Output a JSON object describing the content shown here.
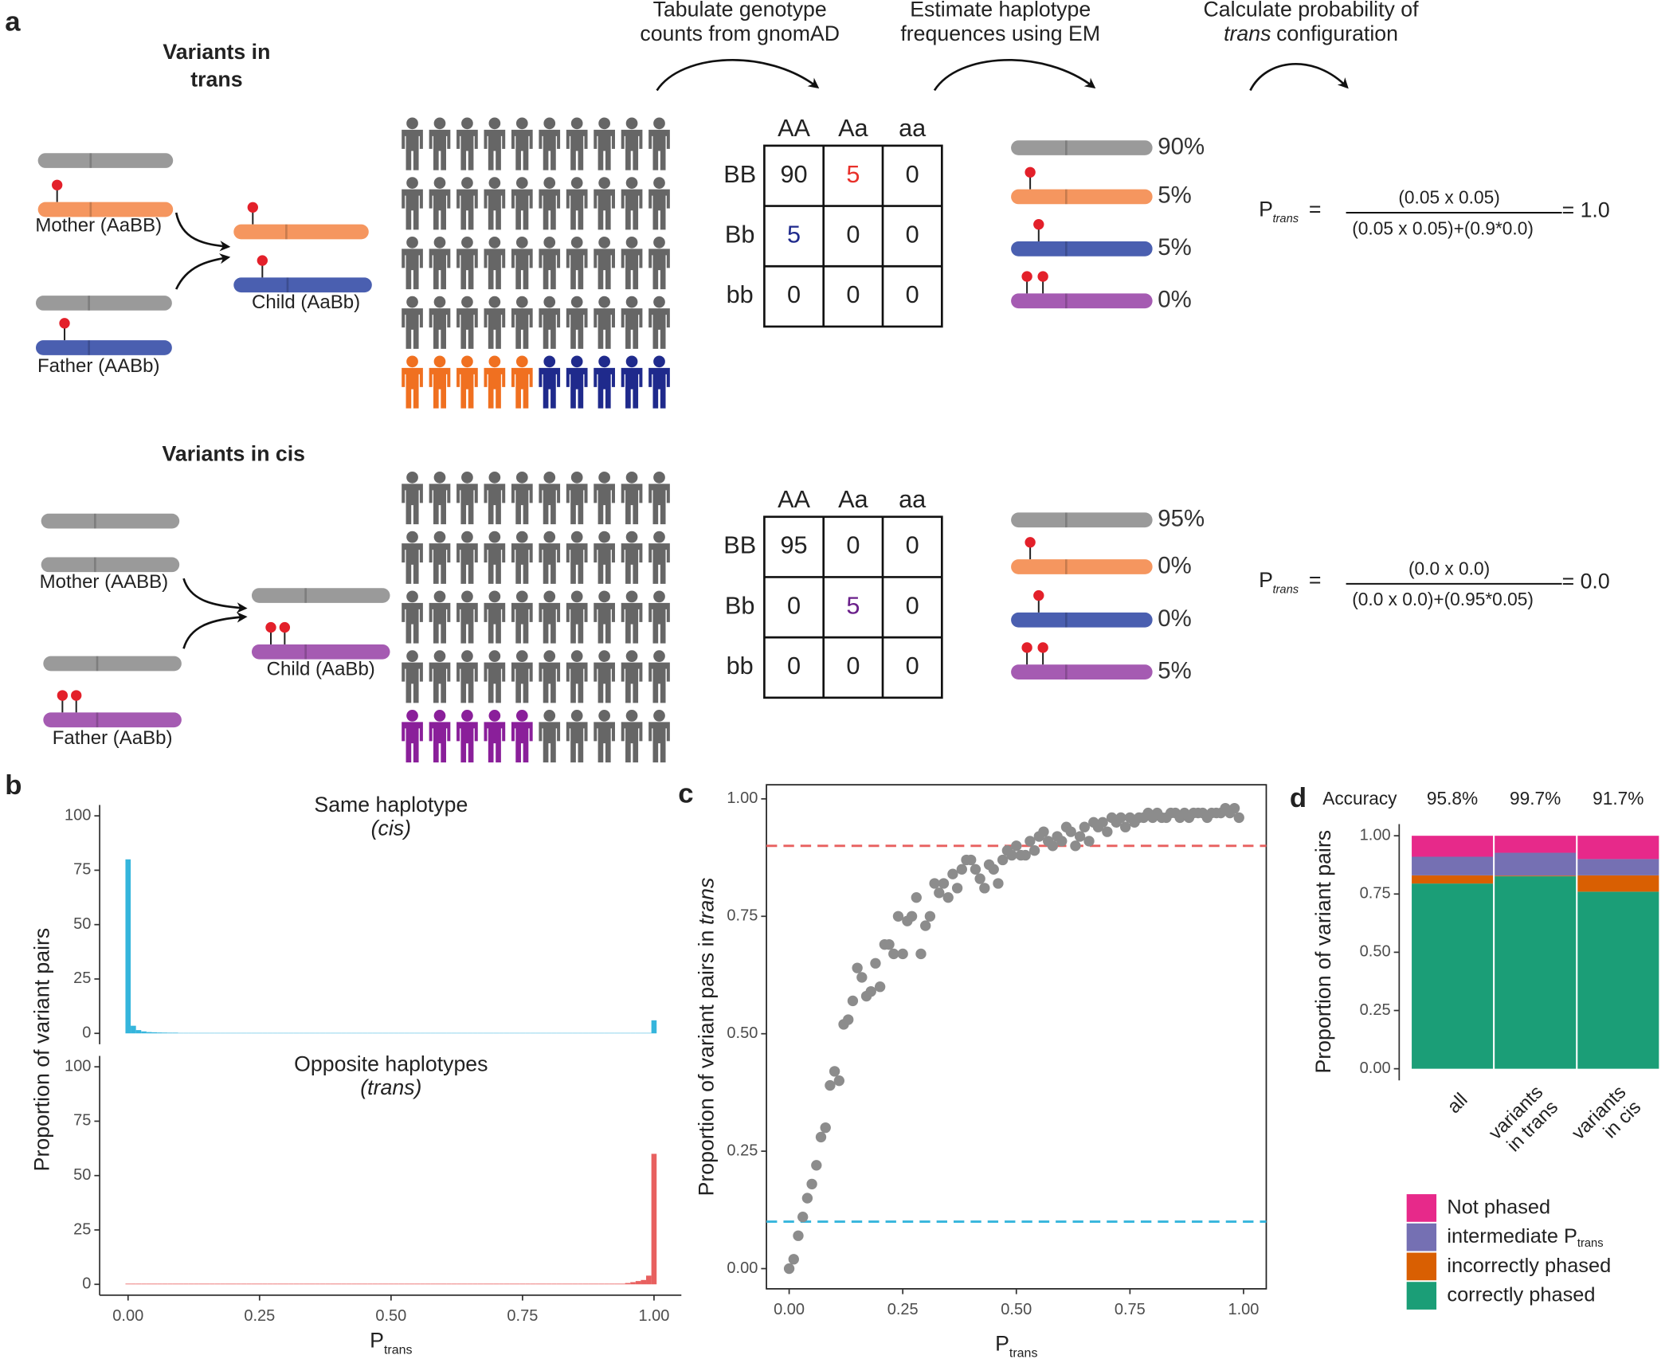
{
  "panel_labels": [
    "a",
    "b",
    "c",
    "d"
  ],
  "panel_a": {
    "steps": [
      {
        "lines": [
          "Tabulate genotype",
          "counts from gnomAD"
        ]
      },
      {
        "lines": [
          "Estimate haplotype",
          "frequences using EM"
        ]
      },
      {
        "lines": [
          "Calculate probability of"
        ],
        "italic": "trans",
        "rest": "configuration"
      }
    ],
    "scenarios": [
      {
        "title": [
          "Variants in",
          "trans"
        ],
        "mother": "Mother (AaBB)",
        "father": "Father (AABb)",
        "child": "Child (AaBb)",
        "table": {
          "columns": [
            "AA",
            "Aa",
            "aa"
          ],
          "rows": [
            "BB",
            "Bb",
            "bb"
          ],
          "cells": [
            [
              90,
              5,
              0
            ],
            [
              5,
              0,
              0
            ],
            [
              0,
              0,
              0
            ]
          ],
          "cell_colors": [
            [
              null,
              "#e8302a",
              null
            ],
            [
              "#1f2a8c",
              null,
              null
            ],
            [
              null,
              null,
              null
            ]
          ]
        },
        "haplotypes": [
          "90%",
          "5%",
          "5%",
          "0%"
        ],
        "formula": {
          "p": "P",
          "sub": "trans",
          "eq": "=",
          "numerator": "(0.05 x 0.05)",
          "denominator": "(0.05 x 0.05)+(0.9*0.0)",
          "result": "= 1.0"
        }
      },
      {
        "title": [
          "Variants in cis"
        ],
        "mother": "Mother (AABB)",
        "father": "Father (AaBb)",
        "child": "Child (AaBb)",
        "table": {
          "columns": [
            "AA",
            "Aa",
            "aa"
          ],
          "rows": [
            "BB",
            "Bb",
            "bb"
          ],
          "cells": [
            [
              95,
              0,
              0
            ],
            [
              0,
              5,
              0
            ],
            [
              0,
              0,
              0
            ]
          ],
          "cell_colors": [
            [
              null,
              null,
              null
            ],
            [
              null,
              "#6a1f8a",
              null
            ],
            [
              null,
              null,
              null
            ]
          ]
        },
        "haplotypes": [
          "95%",
          "0%",
          "0%",
          "5%"
        ],
        "formula": {
          "p": "P",
          "sub": "trans",
          "eq": "=",
          "numerator": "(0.0 x 0.0)",
          "denominator": "(0.0 x 0.0)+(0.95*0.05)",
          "result": "= 0.0"
        }
      }
    ]
  },
  "chart_data": [
    {
      "type": "histogram",
      "title": "Same haplotype",
      "subtitle": "(cis)",
      "ylabel": "Proportion of variant pairs",
      "color": "#35b5dc",
      "xlim": [
        -0.05,
        1.05
      ],
      "ylim": [
        -5,
        105
      ],
      "yticks": [
        0,
        25,
        50,
        75,
        100
      ],
      "bins": [
        -0.005,
        0.005,
        0.015,
        0.025,
        0.035,
        0.045,
        0.055,
        0.065,
        0.075,
        0.085,
        0.095,
        0.105,
        0.115,
        0.125,
        0.135,
        0.145,
        0.155,
        0.165,
        0.175,
        0.185,
        0.195,
        0.205,
        0.215,
        0.225,
        0.235,
        0.245,
        0.255,
        0.265,
        0.275,
        0.285,
        0.295,
        0.305,
        0.315,
        0.325,
        0.335,
        0.345,
        0.355,
        0.365,
        0.375,
        0.385,
        0.395,
        0.405,
        0.415,
        0.425,
        0.435,
        0.445,
        0.455,
        0.465,
        0.475,
        0.485,
        0.495,
        0.505,
        0.515,
        0.525,
        0.535,
        0.545,
        0.555,
        0.565,
        0.575,
        0.585,
        0.595,
        0.605,
        0.615,
        0.625,
        0.635,
        0.645,
        0.655,
        0.665,
        0.675,
        0.685,
        0.695,
        0.705,
        0.715,
        0.725,
        0.735,
        0.745,
        0.755,
        0.765,
        0.775,
        0.785,
        0.795,
        0.805,
        0.815,
        0.825,
        0.835,
        0.845,
        0.855,
        0.865,
        0.875,
        0.885,
        0.895,
        0.905,
        0.915,
        0.925,
        0.935,
        0.945,
        0.955,
        0.965,
        0.975,
        0.985,
        0.995,
        1.005
      ],
      "values": [
        80,
        3.5,
        1.5,
        0.9,
        0.6,
        0.5,
        0.4,
        0.35,
        0.3,
        0.3,
        0.2,
        0.2,
        0.2,
        0.2,
        0.2,
        0.2,
        0.2,
        0.2,
        0.2,
        0.2,
        0.2,
        0.2,
        0.2,
        0.2,
        0.2,
        0.2,
        0.2,
        0.2,
        0.2,
        0.2,
        0.2,
        0.2,
        0.2,
        0.2,
        0.2,
        0.2,
        0.2,
        0.2,
        0.2,
        0.2,
        0.2,
        0.2,
        0.2,
        0.2,
        0.2,
        0.2,
        0.2,
        0.2,
        0.2,
        0.2,
        0.2,
        0.2,
        0.2,
        0.2,
        0.2,
        0.2,
        0.2,
        0.2,
        0.2,
        0.2,
        0.2,
        0.2,
        0.2,
        0.2,
        0.2,
        0.2,
        0.2,
        0.2,
        0.2,
        0.2,
        0.2,
        0.2,
        0.2,
        0.2,
        0.2,
        0.2,
        0.2,
        0.2,
        0.2,
        0.2,
        0.2,
        0.2,
        0.2,
        0.2,
        0.2,
        0.2,
        0.2,
        0.2,
        0.2,
        0.2,
        0.2,
        0.2,
        0.2,
        0.2,
        0.2,
        0.2,
        0.2,
        0.2,
        0.2,
        0.2,
        6
      ]
    },
    {
      "type": "histogram",
      "title": "Opposite haplotypes",
      "subtitle": "(trans)",
      "xlabel": "P",
      "xlabel_sub": "trans",
      "color": "#e8605f",
      "xlim": [
        -0.05,
        1.05
      ],
      "ylim": [
        -5,
        105
      ],
      "yticks": [
        0,
        25,
        50,
        75,
        100
      ],
      "xticks": [
        {
          "value": 0,
          "label": "0.00"
        },
        0.25,
        {
          "value": 0.5,
          "label": "0.50"
        },
        0.75,
        {
          "value": 1,
          "label": "1.00"
        }
      ],
      "bins": [
        -0.005,
        0.005,
        0.015,
        0.025,
        0.035,
        0.045,
        0.055,
        0.065,
        0.075,
        0.085,
        0.095,
        0.105,
        0.115,
        0.125,
        0.135,
        0.145,
        0.155,
        0.165,
        0.175,
        0.185,
        0.195,
        0.205,
        0.215,
        0.225,
        0.235,
        0.245,
        0.255,
        0.265,
        0.275,
        0.285,
        0.295,
        0.305,
        0.315,
        0.325,
        0.335,
        0.345,
        0.355,
        0.365,
        0.375,
        0.385,
        0.395,
        0.405,
        0.415,
        0.425,
        0.435,
        0.445,
        0.455,
        0.465,
        0.475,
        0.485,
        0.495,
        0.505,
        0.515,
        0.525,
        0.535,
        0.545,
        0.555,
        0.565,
        0.575,
        0.585,
        0.595,
        0.605,
        0.615,
        0.625,
        0.635,
        0.645,
        0.655,
        0.665,
        0.675,
        0.685,
        0.695,
        0.705,
        0.715,
        0.725,
        0.735,
        0.745,
        0.755,
        0.765,
        0.775,
        0.785,
        0.795,
        0.805,
        0.815,
        0.825,
        0.835,
        0.845,
        0.855,
        0.865,
        0.875,
        0.885,
        0.895,
        0.905,
        0.915,
        0.925,
        0.935,
        0.945,
        0.955,
        0.965,
        0.975,
        0.985,
        0.995,
        1.005
      ],
      "values": [
        0.3,
        0.3,
        0.3,
        0.3,
        0.3,
        0.3,
        0.3,
        0.3,
        0.3,
        0.3,
        0.3,
        0.3,
        0.3,
        0.3,
        0.3,
        0.3,
        0.3,
        0.3,
        0.3,
        0.3,
        0.3,
        0.3,
        0.3,
        0.3,
        0.3,
        0.3,
        0.3,
        0.3,
        0.3,
        0.3,
        0.3,
        0.3,
        0.3,
        0.3,
        0.3,
        0.3,
        0.3,
        0.3,
        0.3,
        0.3,
        0.3,
        0.3,
        0.3,
        0.3,
        0.3,
        0.3,
        0.3,
        0.3,
        0.3,
        0.3,
        0.3,
        0.3,
        0.3,
        0.3,
        0.3,
        0.3,
        0.3,
        0.3,
        0.3,
        0.3,
        0.3,
        0.3,
        0.3,
        0.3,
        0.3,
        0.3,
        0.3,
        0.3,
        0.3,
        0.3,
        0.3,
        0.3,
        0.3,
        0.3,
        0.3,
        0.3,
        0.3,
        0.3,
        0.3,
        0.3,
        0.3,
        0.3,
        0.3,
        0.3,
        0.3,
        0.3,
        0.3,
        0.3,
        0.3,
        0.3,
        0.3,
        0.3,
        0.3,
        0.3,
        0.3,
        0.6,
        1,
        1.5,
        2,
        4,
        60
      ]
    },
    {
      "type": "scatter",
      "xlabel": "P",
      "xlabel_sub": "trans",
      "ylabel": "Proportion of variant pairs in",
      "ylabel_italic": "trans",
      "color": "#8c8c8c",
      "xlim": [
        -0.05,
        1.05
      ],
      "ylim": [
        -0.043,
        1.03
      ],
      "xticks": [
        {
          "value": 0,
          "label": "0.00"
        },
        0.25,
        {
          "value": 0.5,
          "label": "0.50"
        },
        0.75,
        {
          "value": 1,
          "label": "1.00"
        }
      ],
      "yticks": [
        {
          "value": 0,
          "label": "0.00"
        },
        0.25,
        {
          "value": 0.5,
          "label": "0.50"
        },
        0.75,
        {
          "value": 1,
          "label": "1.00"
        }
      ],
      "hlines": [
        {
          "value": 0.9,
          "color": "#e8605f"
        },
        {
          "value": 0.1,
          "color": "#35b5dc"
        }
      ],
      "x": [
        0,
        0.01,
        0.02,
        0.03,
        0.04,
        0.05,
        0.06,
        0.07,
        0.08,
        0.09,
        0.1,
        0.11,
        0.12,
        0.13,
        0.14,
        0.15,
        0.16,
        0.17,
        0.18,
        0.19,
        0.2,
        0.21,
        0.22,
        0.23,
        0.24,
        0.25,
        0.26,
        0.27,
        0.28,
        0.29,
        0.3,
        0.31,
        0.32,
        0.33,
        0.34,
        0.35,
        0.36,
        0.37,
        0.38,
        0.39,
        0.4,
        0.41,
        0.42,
        0.43,
        0.44,
        0.45,
        0.46,
        0.47,
        0.48,
        0.49,
        0.5,
        0.51,
        0.52,
        0.53,
        0.54,
        0.55,
        0.56,
        0.57,
        0.58,
        0.59,
        0.6,
        0.61,
        0.62,
        0.63,
        0.64,
        0.65,
        0.66,
        0.67,
        0.68,
        0.69,
        0.7,
        0.71,
        0.72,
        0.73,
        0.74,
        0.75,
        0.76,
        0.77,
        0.78,
        0.79,
        0.8,
        0.81,
        0.82,
        0.83,
        0.84,
        0.85,
        0.86,
        0.87,
        0.88,
        0.89,
        0.9,
        0.91,
        0.92,
        0.93,
        0.94,
        0.95,
        0.96,
        0.97,
        0.98,
        0.99
      ],
      "values": [
        0,
        0.02,
        0.07,
        0.11,
        0.15,
        0.18,
        0.22,
        0.28,
        0.3,
        0.39,
        0.42,
        0.4,
        0.52,
        0.53,
        0.57,
        0.64,
        0.62,
        0.58,
        0.59,
        0.65,
        0.6,
        0.69,
        0.69,
        0.67,
        0.75,
        0.67,
        0.74,
        0.75,
        0.79,
        0.67,
        0.73,
        0.75,
        0.82,
        0.8,
        0.82,
        0.79,
        0.84,
        0.81,
        0.85,
        0.87,
        0.87,
        0.85,
        0.83,
        0.81,
        0.86,
        0.85,
        0.82,
        0.87,
        0.89,
        0.88,
        0.9,
        0.88,
        0.88,
        0.91,
        0.89,
        0.92,
        0.93,
        0.91,
        0.9,
        0.92,
        0.91,
        0.94,
        0.93,
        0.9,
        0.92,
        0.94,
        0.91,
        0.95,
        0.94,
        0.95,
        0.93,
        0.96,
        0.95,
        0.96,
        0.94,
        0.96,
        0.95,
        0.96,
        0.96,
        0.97,
        0.96,
        0.97,
        0.96,
        0.96,
        0.97,
        0.97,
        0.96,
        0.97,
        0.96,
        0.97,
        0.97,
        0.97,
        0.96,
        0.97,
        0.97,
        0.97,
        0.98,
        0.97,
        0.98,
        0.96
      ]
    },
    {
      "type": "stacked_bar",
      "ylabel": "Proportion of variant pairs",
      "annotation_title": "Accuracy",
      "annotations": [
        "95.8%",
        "99.7%",
        "91.7%"
      ],
      "categories": [
        [
          "all"
        ],
        [
          "variants",
          "in trans"
        ],
        [
          "variants",
          "in cis"
        ]
      ],
      "ylim": [
        -0.05,
        1.05
      ],
      "yticks": [
        {
          "value": 0,
          "label": "0.00"
        },
        0.25,
        {
          "value": 0.5,
          "label": "0.50"
        },
        0.75,
        {
          "value": 1,
          "label": "1.00"
        }
      ],
      "series": [
        {
          "name": "correctly phased",
          "color": "#1b9e77",
          "values": [
            0.795,
            0.826,
            0.76
          ]
        },
        {
          "name": "incorrectly phased",
          "color": "#d95f02",
          "values": [
            0.035,
            0.003,
            0.07
          ]
        },
        {
          "name": "intermediate P",
          "subscript": "trans",
          "color": "#7570b3",
          "values": [
            0.08,
            0.098,
            0.07
          ]
        },
        {
          "name": "Not phased",
          "color": "#e7298a",
          "values": [
            0.09,
            0.073,
            0.1
          ]
        }
      ]
    }
  ]
}
